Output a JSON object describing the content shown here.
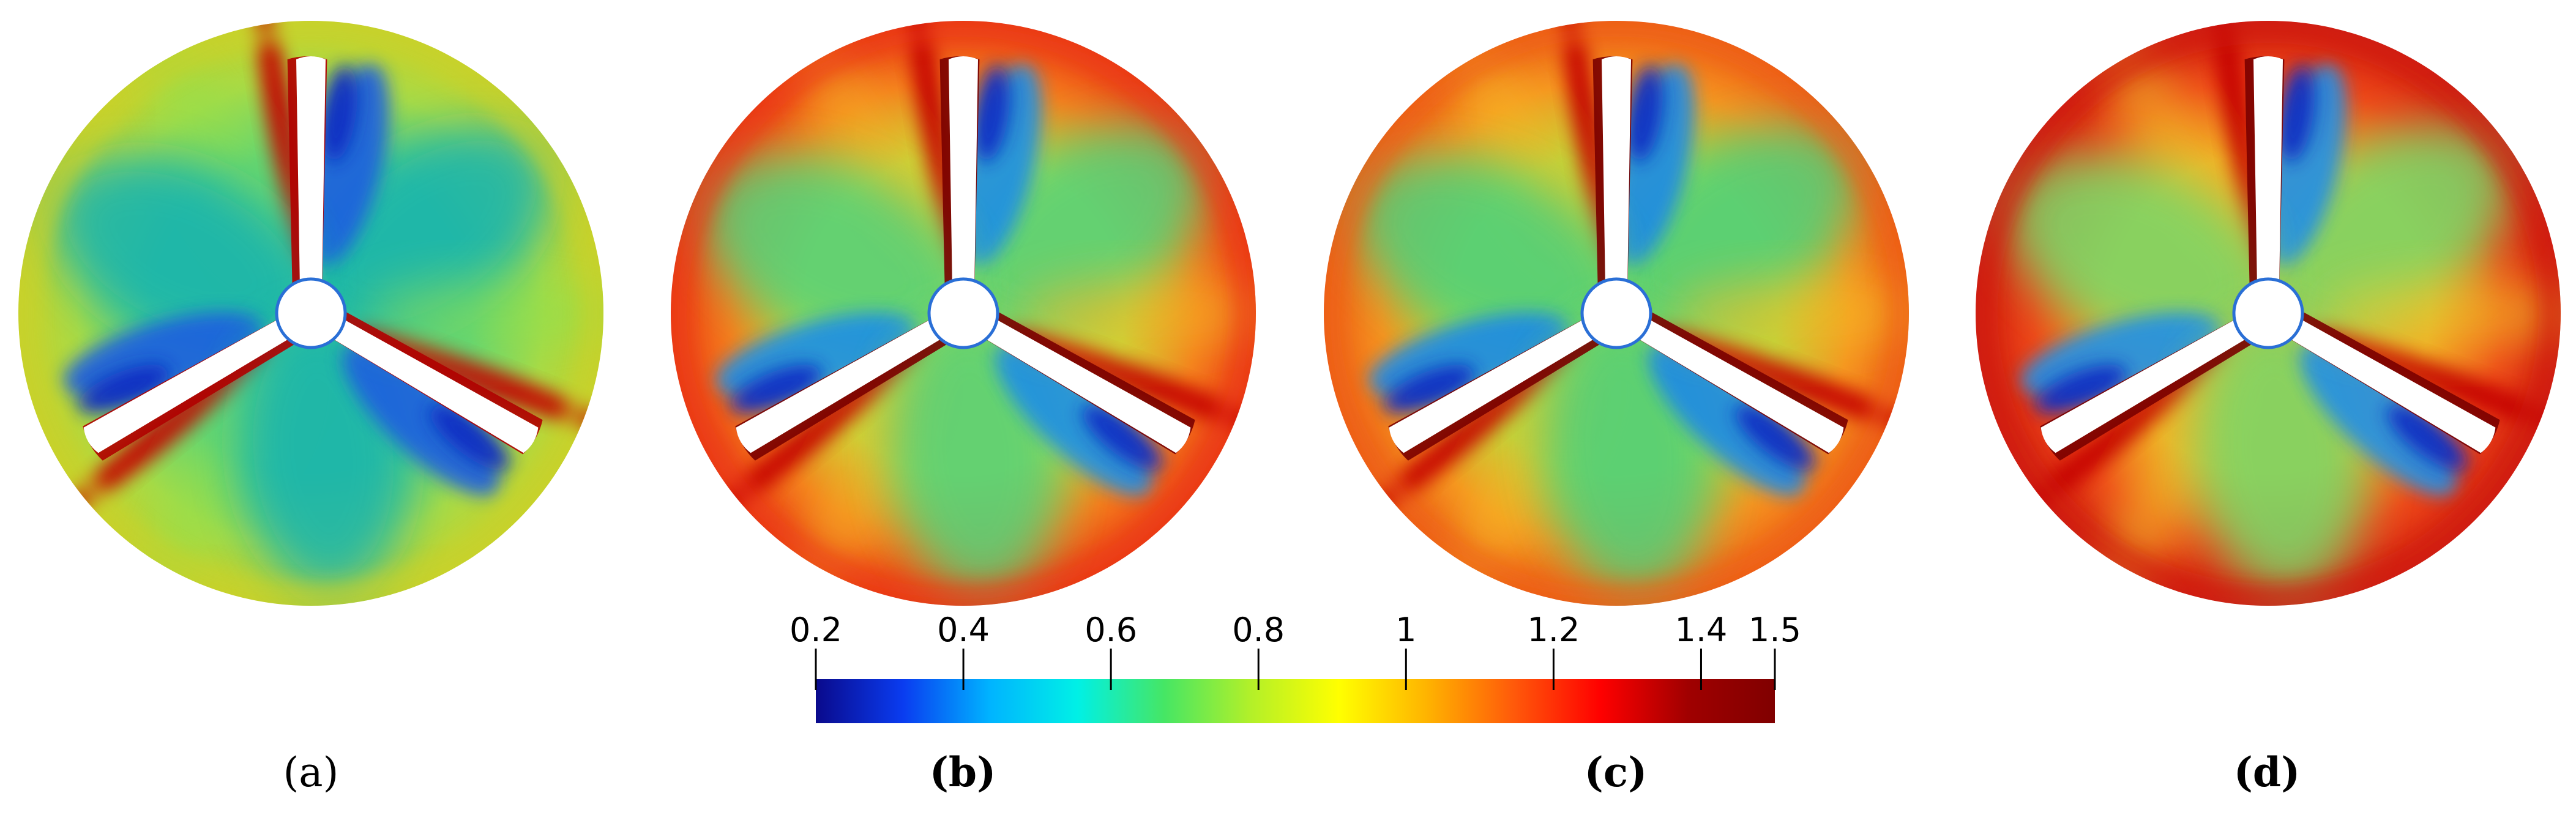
{
  "panels": [
    {
      "id": "a",
      "label": "(a)",
      "bold": false
    },
    {
      "id": "b",
      "label": "(b)",
      "bold": true
    },
    {
      "id": "c",
      "label": "(c)",
      "bold": true
    },
    {
      "id": "d",
      "label": "(d)",
      "bold": true
    }
  ],
  "colorbar": {
    "min": 0.2,
    "max": 1.5,
    "ticks": [
      {
        "value": 0.2,
        "label": "0.2"
      },
      {
        "value": 0.4,
        "label": "0.4"
      },
      {
        "value": 0.6,
        "label": "0.6"
      },
      {
        "value": 0.8,
        "label": "0.8"
      },
      {
        "value": 1.0,
        "label": "1"
      },
      {
        "value": 1.2,
        "label": "1.2"
      },
      {
        "value": 1.4,
        "label": "1.4"
      },
      {
        "value": 1.5,
        "label": "1.5"
      }
    ],
    "colormap": [
      "#0a0a8c",
      "#0a3cf0",
      "#00b4ff",
      "#00f0e6",
      "#46e664",
      "#b4f028",
      "#ffff00",
      "#ffb400",
      "#ff5a0a",
      "#ff0000",
      "#a00000",
      "#800000"
    ]
  },
  "colors": {
    "blade": "#ffffff",
    "blade_edge": "#7a0000",
    "hub_ring": "#2a6fd6"
  },
  "contour_fields": [
    {
      "panel": "a",
      "rim": "#c8d22c",
      "outer": "#a9da45",
      "mid": "#59d27b",
      "low": "#17b3b0",
      "deep": "#1f5fe0",
      "darkest": "#0d2cc2",
      "wake": "#8fe04d"
    },
    {
      "panel": "b",
      "rim": "#eb3b16",
      "outer": "#f47d1c",
      "mid": "#c7da37",
      "low": "#52d07c",
      "deep": "#1e8fe6",
      "darkest": "#0c2bc4",
      "wake": "#f4b526"
    },
    {
      "panel": "c",
      "rim": "#ee6018",
      "outer": "#f5931f",
      "mid": "#b7d93b",
      "low": "#4dcf7c",
      "deep": "#1b8ae6",
      "darkest": "#0c2ac2",
      "wake": "#f5bd27"
    },
    {
      "panel": "d",
      "rim": "#d01d11",
      "outer": "#ee4818",
      "mid": "#f3a523",
      "low": "#77d96a",
      "deep": "#2090e6",
      "darkest": "#0c2ac2",
      "wake": "#f0cd2a"
    }
  ]
}
